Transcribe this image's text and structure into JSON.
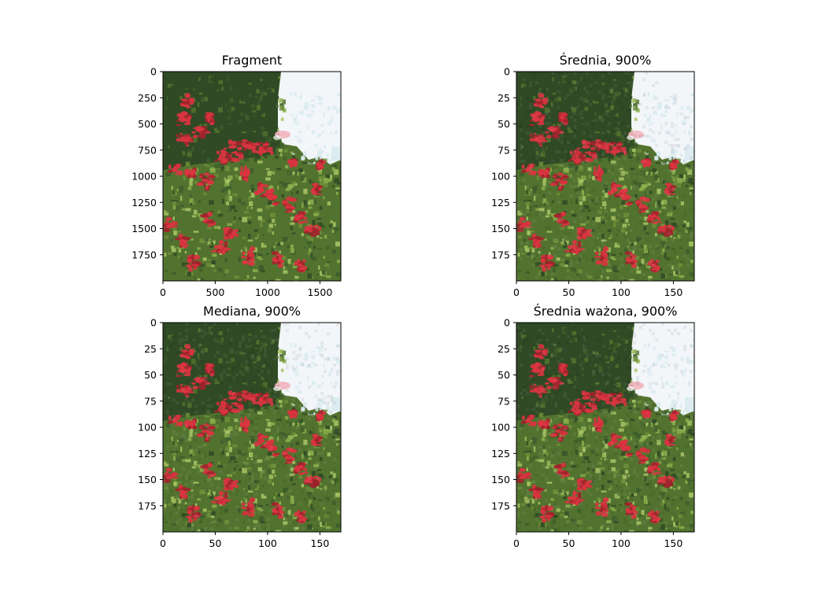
{
  "figure": {
    "background": "#ffffff"
  },
  "chart_data": [
    {
      "type": "image",
      "title": "Fragment",
      "image": "photo of dense green conifer branches covered with red leaves, blue-white sky in the upper right",
      "xlim": [
        0,
        1700
      ],
      "ylim": [
        2000,
        0
      ],
      "xticks": [
        0,
        500,
        1000,
        1500
      ],
      "xtick_labels": [
        "0",
        "500",
        "1000",
        "1500"
      ],
      "yticks": [
        0,
        250,
        500,
        750,
        1000,
        1250,
        1500,
        1750
      ],
      "ytick_labels": [
        "0",
        "250",
        "500",
        "750",
        "1000",
        "1250",
        "1500",
        "1750"
      ],
      "grid": false
    },
    {
      "type": "image",
      "title": "Średnia, 900%",
      "image": "same photo downscaled (mean interpolation), pixelated",
      "xlim": [
        0,
        170
      ],
      "ylim": [
        200,
        0
      ],
      "xticks": [
        0,
        50,
        100,
        150
      ],
      "xtick_labels": [
        "0",
        "50",
        "100",
        "150"
      ],
      "yticks": [
        0,
        25,
        50,
        75,
        100,
        125,
        150,
        175
      ],
      "ytick_labels": [
        "0",
        "25",
        "50",
        "75",
        "100",
        "125",
        "150",
        "175"
      ],
      "grid": false
    },
    {
      "type": "image",
      "title": "Mediana, 900%",
      "image": "same photo downscaled (median interpolation), pixelated",
      "xlim": [
        0,
        170
      ],
      "ylim": [
        200,
        0
      ],
      "xticks": [
        0,
        50,
        100,
        150
      ],
      "xtick_labels": [
        "0",
        "50",
        "100",
        "150"
      ],
      "yticks": [
        0,
        25,
        50,
        75,
        100,
        125,
        150,
        175
      ],
      "ytick_labels": [
        "0",
        "25",
        "50",
        "75",
        "100",
        "125",
        "150",
        "175"
      ],
      "grid": false
    },
    {
      "type": "image",
      "title": "Średnia ważona, 900%",
      "image": "same photo downscaled (weighted mean interpolation), pixelated",
      "xlim": [
        0,
        170
      ],
      "ylim": [
        200,
        0
      ],
      "xticks": [
        0,
        50,
        100,
        150
      ],
      "xtick_labels": [
        "0",
        "50",
        "100",
        "150"
      ],
      "yticks": [
        0,
        25,
        50,
        75,
        100,
        125,
        150,
        175
      ],
      "ytick_labels": [
        "0",
        "25",
        "50",
        "75",
        "100",
        "125",
        "150",
        "175"
      ],
      "grid": false
    }
  ],
  "colors": {
    "sky": "#f2f6f8",
    "sky_tint": "#d9ebef",
    "dark_foliage": "#2f4a25",
    "mid_foliage": "#52732f",
    "light_foliage": "#8caf4c",
    "pale_foliage": "#a9c465",
    "red_leaves": "#d93440",
    "dark_red": "#a2242d",
    "pink_highlight": "#f2b3bd",
    "axis": "#000000"
  }
}
